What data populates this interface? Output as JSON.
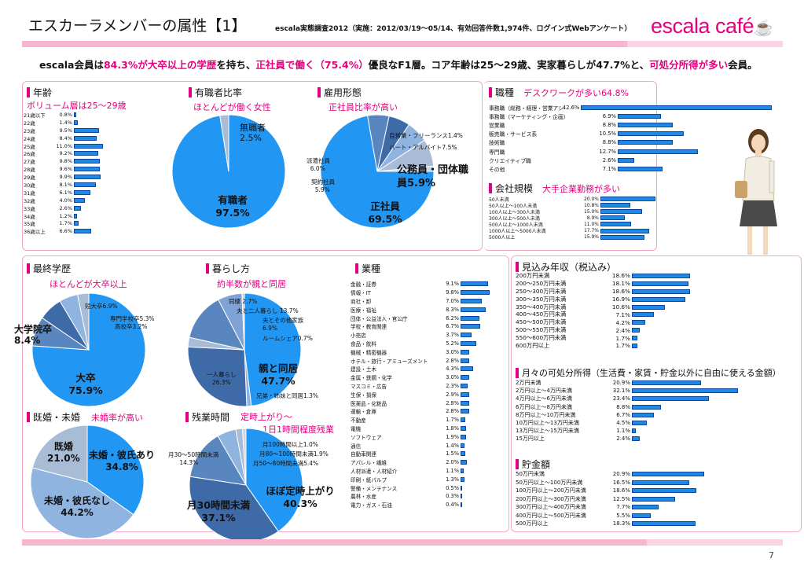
{
  "header": {
    "title": "エスカーラメンバーの属性【1】",
    "survey": "escala実態調査2012（実施：2012/03/19～05/14、有効回答件数1,974件、ログイン式Webアンケート）",
    "logo": "escala café"
  },
  "summary": {
    "p1": "escala会員は",
    "h1": "84.3%が大卒以上の学歴",
    "p2": "を持ち、",
    "h2": "正社員で働く（75.4%）",
    "p3": "優良なF1層。コア年齢は25～29歳、実家暮らしが47.7%と、",
    "h3": "可処分所得が多い",
    "p4": "会員。"
  },
  "age": {
    "title": "年齢",
    "subtitle": "ボリューム層は25～29歳",
    "rows": [
      {
        "label": "21歳以下",
        "value": "0.8%",
        "v": 0.8
      },
      {
        "label": "22歳",
        "value": "1.4%",
        "v": 1.4
      },
      {
        "label": "23歳",
        "value": "9.5%",
        "v": 9.5
      },
      {
        "label": "24歳",
        "value": "8.4%",
        "v": 8.4
      },
      {
        "label": "25歳",
        "value": "11.0%",
        "v": 11.0
      },
      {
        "label": "26歳",
        "value": "9.2%",
        "v": 9.2
      },
      {
        "label": "27歳",
        "value": "9.8%",
        "v": 9.8
      },
      {
        "label": "28歳",
        "value": "9.6%",
        "v": 9.6
      },
      {
        "label": "29歳",
        "value": "9.9%",
        "v": 9.9
      },
      {
        "label": "30歳",
        "value": "8.1%",
        "v": 8.1
      },
      {
        "label": "31歳",
        "value": "6.1%",
        "v": 6.1
      },
      {
        "label": "32歳",
        "value": "4.0%",
        "v": 4.0
      },
      {
        "label": "33歳",
        "value": "2.6%",
        "v": 2.6
      },
      {
        "label": "34歳",
        "value": "1.2%",
        "v": 1.2
      },
      {
        "label": "35歳",
        "value": "1.7%",
        "v": 1.7
      },
      {
        "label": "36歳以上",
        "value": "6.6%",
        "v": 6.6
      }
    ]
  },
  "employed": {
    "title": "有職者比率",
    "subtitle": "ほとんどが働く女性",
    "l1": "無職者",
    "v1": "2.5%",
    "l2": "有職者",
    "v2": "97.5%",
    "slices": [
      97.5,
      2.5
    ]
  },
  "employment": {
    "title": "雇用形態",
    "subtitle": "正社員比率が高い",
    "self": "自営業・フリーランス1.4%",
    "part": "パート・アルバイト7.5%",
    "dispatch": "派遣社員",
    "dispatch_v": "6.0%",
    "contract": "契約社員",
    "contract_v": "5.9%",
    "public": "公務員・団体職員5.9%",
    "regular": "正社員",
    "regular_v": "69.5%",
    "slices": [
      69.5,
      5.9,
      5.9,
      6.0,
      7.5,
      1.4
    ]
  },
  "job": {
    "title": "職種",
    "subtitle": "デスクワークが多い64.8%",
    "rows": [
      {
        "label": "事務職（総務・経理・営業アシスタント）",
        "value": "42.6%",
        "v": 42.6
      },
      {
        "label": "事務職（マーケティング・企画）",
        "value": "6.9%",
        "v": 6.9
      },
      {
        "label": "営業職",
        "value": "8.8%",
        "v": 8.8
      },
      {
        "label": "販売職・サービス系",
        "value": "10.5%",
        "v": 10.5
      },
      {
        "label": "技術職",
        "value": "8.8%",
        "v": 8.8
      },
      {
        "label": "専門職",
        "value": "12.7%",
        "v": 12.7
      },
      {
        "label": "クリエイティブ職",
        "value": "2.6%",
        "v": 2.6
      },
      {
        "label": "その他",
        "value": "7.1%",
        "v": 7.1
      }
    ]
  },
  "company": {
    "title": "会社規模",
    "subtitle": "大手企業勤務が多い",
    "rows": [
      {
        "label": "50人未満",
        "value": "20.0%",
        "v": 20.0
      },
      {
        "label": "50人以上～100人未満",
        "value": "10.8%",
        "v": 10.8
      },
      {
        "label": "100人以上～300人未満",
        "value": "15.0%",
        "v": 15.0
      },
      {
        "label": "300人以上～500人未満",
        "value": "8.9%",
        "v": 8.9
      },
      {
        "label": "500人以上～1000人未満",
        "value": "11.0%",
        "v": 11.0
      },
      {
        "label": "1000人以上～5000人未満",
        "value": "17.7%",
        "v": 17.7
      },
      {
        "label": "5000人以上",
        "value": "15.9%",
        "v": 15.9
      }
    ]
  },
  "education": {
    "title": "最終学歴",
    "subtitle": "ほとんどが大卒以上",
    "junior": "短大卒6.9%",
    "vocational": "専門学校卒5.3%",
    "high": "高校卒3.2%",
    "grad": "大学院卒",
    "grad_v": "8.4%",
    "univ": "大卒",
    "univ_v": "75.9%",
    "slices": [
      75.9,
      8.4,
      6.9,
      5.3,
      3.2
    ]
  },
  "living": {
    "title": "暮らし方",
    "subtitle": "約半数が親と同居",
    "cohab": "同棲  2.7%",
    "husband": "夫と二人暮らし  13.7%",
    "inlaw": "夫とその他家族",
    "inlaw_v": "6.9%",
    "share": "ルームシェア0.7%",
    "alone": "一人暮らし",
    "alone_v": "26.3%",
    "parents": "親と同居",
    "parents_v": "47.7%",
    "sibling": "兄弟・姉妹と同居1.3%",
    "slices": [
      47.7,
      1.3,
      26.3,
      2.7,
      13.7,
      6.9,
      0.7
    ]
  },
  "industry": {
    "title": "業種",
    "rows": [
      {
        "label": "金融・証券",
        "value": "9.1%",
        "v": 9.1
      },
      {
        "label": "情報・IT",
        "value": "9.8%",
        "v": 9.8
      },
      {
        "label": "商社・卸",
        "value": "7.0%",
        "v": 7.0
      },
      {
        "label": "医療・福祉",
        "value": "8.3%",
        "v": 8.3
      },
      {
        "label": "団体・公益法人・官公庁",
        "value": "6.2%",
        "v": 6.2
      },
      {
        "label": "学校・教育関連",
        "value": "6.7%",
        "v": 6.7
      },
      {
        "label": "小売店",
        "value": "3.7%",
        "v": 3.7
      },
      {
        "label": "食品・飲料",
        "value": "5.2%",
        "v": 5.2
      },
      {
        "label": "機械・精密機器",
        "value": "3.0%",
        "v": 3.0
      },
      {
        "label": "ホテル・旅行・アミューズメント",
        "value": "2.8%",
        "v": 2.8
      },
      {
        "label": "建設・土木",
        "value": "4.3%",
        "v": 4.3
      },
      {
        "label": "金属・鉄鋼・化学",
        "value": "3.0%",
        "v": 3.0
      },
      {
        "label": "マスコミ・広告",
        "value": "2.3%",
        "v": 2.3
      },
      {
        "label": "生保・損保",
        "value": "2.9%",
        "v": 2.9
      },
      {
        "label": "医薬品・化粧品",
        "value": "2.8%",
        "v": 2.8
      },
      {
        "label": "運輸・倉庫",
        "value": "2.8%",
        "v": 2.8
      },
      {
        "label": "不動産",
        "value": "1.7%",
        "v": 1.7
      },
      {
        "label": "電機",
        "value": "1.8%",
        "v": 1.8
      },
      {
        "label": "ソフトウェア",
        "value": "1.9%",
        "v": 1.9
      },
      {
        "label": "通信",
        "value": "1.4%",
        "v": 1.4
      },
      {
        "label": "自動車関連",
        "value": "1.5%",
        "v": 1.5
      },
      {
        "label": "アパレル・繊維",
        "value": "2.0%",
        "v": 2.0
      },
      {
        "label": "人材派遣・人材紹介",
        "value": "1.1%",
        "v": 1.1
      },
      {
        "label": "印刷・紙パルプ",
        "value": "1.3%",
        "v": 1.3
      },
      {
        "label": "警備・メンテナンス",
        "value": "0.5%",
        "v": 0.5
      },
      {
        "label": "農林・水産",
        "value": "0.3%",
        "v": 0.3
      },
      {
        "label": "電力・ガス・石油",
        "value": "0.4%",
        "v": 0.4
      }
    ]
  },
  "marital": {
    "title": "既婚・未婚",
    "subtitle": "未婚率が高い",
    "married": "既婚",
    "married_v": "21.0%",
    "single_p": "未婚・彼氏あり",
    "single_p_v": "34.8%",
    "single_n": "未婚・彼氏なし",
    "single_n_v": "44.2%",
    "slices": [
      34.8,
      44.2,
      21.0
    ]
  },
  "overtime": {
    "title": "残業時間",
    "subtitle1": "定時上がり～",
    "subtitle2": "1日1時間程度残業",
    "o100": "月100時間以上1.0%",
    "o80": "月80～100時間未満1.9%",
    "o50": "月50～80時間未満5.4%",
    "o30": "月30～50時間未満",
    "o30_v": "14.3%",
    "u30": "月30時間未満",
    "u30_v": "37.1%",
    "ontime": "ほぼ定時上がり",
    "ontime_v": "40.3%",
    "slices": [
      40.3,
      37.1,
      14.3,
      5.4,
      1.9,
      1.0
    ]
  },
  "income": {
    "title": "見込み年収（税込み）",
    "rows": [
      {
        "label": "200万円未満",
        "value": "18.6%",
        "v": 18.6
      },
      {
        "label": "200～250万円未満",
        "value": "18.1%",
        "v": 18.1
      },
      {
        "label": "250～300万円未満",
        "value": "18.6%",
        "v": 18.6
      },
      {
        "label": "300～350万円未満",
        "value": "16.9%",
        "v": 16.9
      },
      {
        "label": "350～400万円未満",
        "value": "10.6%",
        "v": 10.6
      },
      {
        "label": "400～450万円未満",
        "value": "7.1%",
        "v": 7.1
      },
      {
        "label": "450～500万円未満",
        "value": "4.2%",
        "v": 4.2
      },
      {
        "label": "500～550万円未満",
        "value": "2.4%",
        "v": 2.4
      },
      {
        "label": "550～600万円未満",
        "value": "1.7%",
        "v": 1.7
      },
      {
        "label": "600万円以上",
        "value": "1.7%",
        "v": 1.7
      }
    ]
  },
  "disposable": {
    "title": "月々の可処分所得（生活費・家賃・貯金以外に自由に使える金額）",
    "rows": [
      {
        "label": "2万円未満",
        "value": "20.9%",
        "v": 20.9
      },
      {
        "label": "2万円以上～4万円未満",
        "value": "32.1%",
        "v": 32.1
      },
      {
        "label": "4万円以上～6万円未満",
        "value": "23.4%",
        "v": 23.4
      },
      {
        "label": "6万円以上～8万円未満",
        "value": "8.8%",
        "v": 8.8
      },
      {
        "label": "8万円以上～10万円未満",
        "value": "6.7%",
        "v": 6.7
      },
      {
        "label": "10万円以上～13万円未満",
        "value": "4.5%",
        "v": 4.5
      },
      {
        "label": "13万円以上～15万円未満",
        "value": "1.1%",
        "v": 1.1
      },
      {
        "label": "15万円以上",
        "value": "2.4%",
        "v": 2.4
      }
    ]
  },
  "savings": {
    "title": "貯金額",
    "rows": [
      {
        "label": "50万円未満",
        "value": "20.9%",
        "v": 20.9
      },
      {
        "label": "50万円以上～100万円未満",
        "value": "16.5%",
        "v": 16.5
      },
      {
        "label": "100万円以上～200万円未満",
        "value": "18.6%",
        "v": 18.6
      },
      {
        "label": "200万円以上～300万円未満",
        "value": "12.5%",
        "v": 12.5
      },
      {
        "label": "300万円以上～400万円未満",
        "value": "7.7%",
        "v": 7.7
      },
      {
        "label": "400万円以上～500万円未満",
        "value": "5.5%",
        "v": 5.5
      },
      {
        "label": "500万円以上",
        "value": "18.3%",
        "v": 18.3
      }
    ]
  },
  "page": {
    "number": "7"
  },
  "colors": {
    "pink": "#e4007f",
    "blue": "#1e88e5",
    "pie_main": "#2196f3",
    "pie_light": "#8fb4e0",
    "pie_mid": "#5a86c0",
    "pie_dark": "#3e6aa8",
    "pie_grey": "#a9bcd6"
  }
}
